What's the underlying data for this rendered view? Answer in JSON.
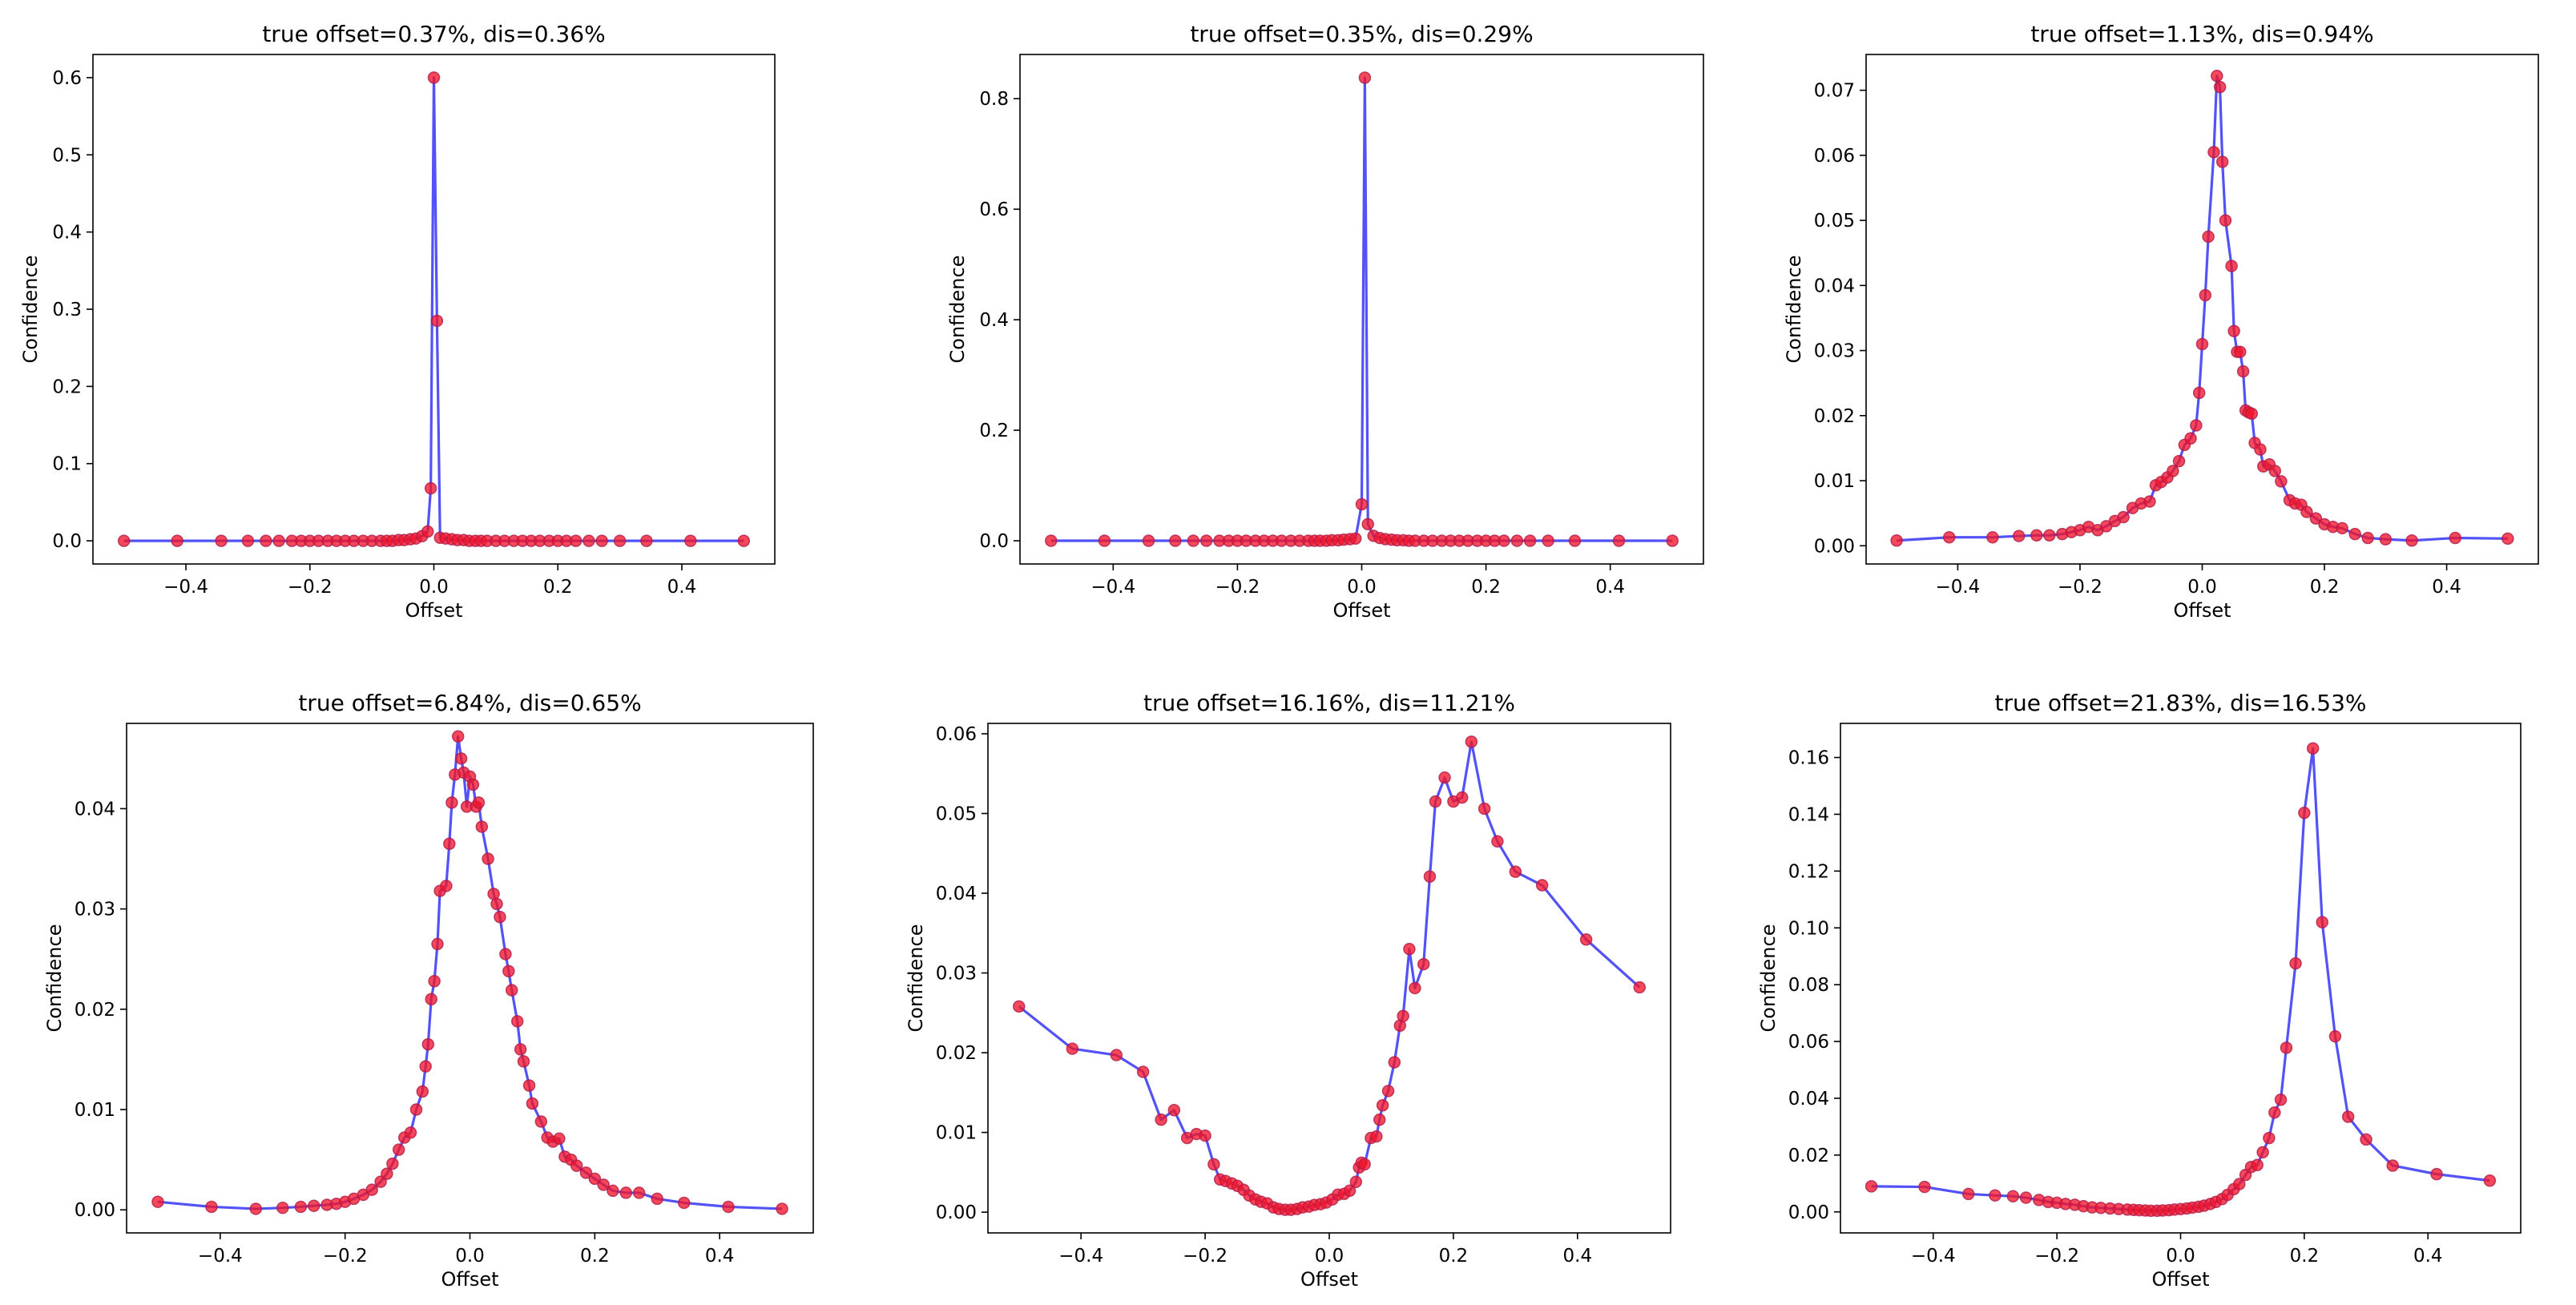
{
  "figure": {
    "background": "#ffffff",
    "line_color": "#3f3ff5",
    "marker_color": "#f2162c",
    "marker_edge": "#b01a4a"
  },
  "chart_data": [
    {
      "type": "line",
      "title": "true offset=0.37%, dis=0.36%",
      "xlabel": "Offset",
      "ylabel": "Confidence",
      "xlim": [
        -0.55,
        0.55
      ],
      "ylim": [
        -0.03,
        0.63
      ],
      "xticks": [
        -0.4,
        -0.2,
        0.0,
        0.2,
        0.4
      ],
      "xtick_labels": [
        "−0.4",
        "−0.2",
        "0.0",
        "0.2",
        "0.4"
      ],
      "yticks": [
        0.0,
        0.1,
        0.2,
        0.3,
        0.4,
        0.5,
        0.6
      ],
      "ytick_labels": [
        "0.0",
        "0.1",
        "0.2",
        "0.3",
        "0.4",
        "0.5",
        "0.6"
      ],
      "series": [
        {
          "name": "confidence",
          "x": [
            -0.5,
            -0.414,
            -0.343,
            -0.3,
            -0.271,
            -0.25,
            -0.229,
            -0.214,
            -0.2,
            -0.186,
            -0.171,
            -0.157,
            -0.143,
            -0.129,
            -0.114,
            -0.1,
            -0.086,
            -0.076,
            -0.067,
            -0.057,
            -0.048,
            -0.038,
            -0.029,
            -0.019,
            -0.01,
            -0.005,
            0.0,
            0.005,
            0.01,
            0.019,
            0.029,
            0.038,
            0.048,
            0.057,
            0.067,
            0.076,
            0.086,
            0.1,
            0.114,
            0.129,
            0.143,
            0.157,
            0.171,
            0.186,
            0.2,
            0.214,
            0.229,
            0.25,
            0.271,
            0.3,
            0.343,
            0.414,
            0.5
          ],
          "y": [
            0.0,
            0.0,
            0.0,
            0.0,
            0.0,
            0.0,
            0.0,
            0.0,
            0.0,
            0.0,
            0.0,
            0.0,
            0.0,
            0.0,
            0.0,
            0.0,
            0.0,
            0.0,
            0.0,
            0.001,
            0.001,
            0.002,
            0.003,
            0.006,
            0.012,
            0.068,
            0.6,
            0.285,
            0.004,
            0.003,
            0.002,
            0.001,
            0.001,
            0.0,
            0.0,
            0.0,
            0.0,
            0.0,
            0.0,
            0.0,
            0.0,
            0.0,
            0.0,
            0.0,
            0.0,
            0.0,
            0.0,
            0.0,
            0.0,
            0.0,
            0.0,
            0.0,
            0.0
          ]
        }
      ]
    },
    {
      "type": "line",
      "title": "true offset=0.35%, dis=0.29%",
      "xlabel": "Offset",
      "ylabel": "Confidence",
      "xlim": [
        -0.55,
        0.55
      ],
      "ylim": [
        -0.042,
        0.88
      ],
      "xticks": [
        -0.4,
        -0.2,
        0.0,
        0.2,
        0.4
      ],
      "xtick_labels": [
        "−0.4",
        "−0.2",
        "0.0",
        "0.2",
        "0.4"
      ],
      "yticks": [
        0.0,
        0.2,
        0.4,
        0.6,
        0.8
      ],
      "ytick_labels": [
        "0.0",
        "0.2",
        "0.4",
        "0.6",
        "0.8"
      ],
      "series": [
        {
          "name": "confidence",
          "x": [
            -0.5,
            -0.414,
            -0.343,
            -0.3,
            -0.271,
            -0.25,
            -0.229,
            -0.214,
            -0.2,
            -0.186,
            -0.171,
            -0.157,
            -0.143,
            -0.129,
            -0.114,
            -0.1,
            -0.086,
            -0.076,
            -0.067,
            -0.057,
            -0.048,
            -0.038,
            -0.029,
            -0.019,
            -0.01,
            0.0,
            0.005,
            0.01,
            0.019,
            0.029,
            0.038,
            0.048,
            0.057,
            0.067,
            0.076,
            0.086,
            0.1,
            0.114,
            0.129,
            0.143,
            0.157,
            0.171,
            0.186,
            0.2,
            0.214,
            0.229,
            0.25,
            0.271,
            0.3,
            0.343,
            0.414,
            0.5
          ],
          "y": [
            0.0,
            0.0,
            0.0,
            0.0,
            0.0,
            0.0,
            0.0,
            0.0,
            0.0,
            0.0,
            0.0,
            0.0,
            0.0,
            0.0,
            0.0,
            0.0,
            0.0,
            0.0,
            0.0,
            0.0,
            0.001,
            0.001,
            0.002,
            0.003,
            0.004,
            0.066,
            0.838,
            0.03,
            0.009,
            0.005,
            0.003,
            0.002,
            0.001,
            0.001,
            0.0,
            0.0,
            0.0,
            0.0,
            0.0,
            0.0,
            0.0,
            0.0,
            0.0,
            0.0,
            0.0,
            0.0,
            0.0,
            0.0,
            0.0,
            0.0,
            0.0,
            0.0
          ]
        }
      ]
    },
    {
      "type": "line",
      "title": "true offset=1.13%, dis=0.94%",
      "xlabel": "Offset",
      "ylabel": "Confidence",
      "xlim": [
        -0.55,
        0.55
      ],
      "ylim": [
        -0.0028,
        0.0755
      ],
      "xticks": [
        -0.4,
        -0.2,
        0.0,
        0.2,
        0.4
      ],
      "xtick_labels": [
        "−0.4",
        "−0.2",
        "0.0",
        "0.2",
        "0.4"
      ],
      "yticks": [
        0.0,
        0.01,
        0.02,
        0.03,
        0.04,
        0.05,
        0.06,
        0.07
      ],
      "ytick_labels": [
        "0.00",
        "0.01",
        "0.02",
        "0.03",
        "0.04",
        "0.05",
        "0.06",
        "0.07"
      ],
      "series": [
        {
          "name": "confidence",
          "x": [
            -0.5,
            -0.414,
            -0.343,
            -0.3,
            -0.271,
            -0.25,
            -0.229,
            -0.214,
            -0.2,
            -0.186,
            -0.171,
            -0.157,
            -0.143,
            -0.129,
            -0.114,
            -0.1,
            -0.086,
            -0.076,
            -0.067,
            -0.057,
            -0.048,
            -0.038,
            -0.029,
            -0.019,
            -0.01,
            -0.005,
            0.0,
            0.005,
            0.01,
            0.019,
            0.024,
            0.029,
            0.033,
            0.038,
            0.048,
            0.052,
            0.057,
            0.062,
            0.067,
            0.071,
            0.076,
            0.081,
            0.086,
            0.095,
            0.1,
            0.11,
            0.119,
            0.129,
            0.143,
            0.152,
            0.162,
            0.171,
            0.186,
            0.2,
            0.214,
            0.229,
            0.25,
            0.271,
            0.3,
            0.343,
            0.414,
            0.5
          ],
          "y": [
            0.0008,
            0.0013,
            0.0013,
            0.0015,
            0.0016,
            0.0016,
            0.0018,
            0.0021,
            0.0024,
            0.0029,
            0.0024,
            0.003,
            0.0038,
            0.0044,
            0.0058,
            0.0065,
            0.0068,
            0.0093,
            0.0098,
            0.0105,
            0.0115,
            0.013,
            0.0155,
            0.0165,
            0.0185,
            0.0235,
            0.031,
            0.0385,
            0.0475,
            0.0605,
            0.0722,
            0.0705,
            0.059,
            0.05,
            0.043,
            0.033,
            0.0298,
            0.0298,
            0.0268,
            0.0208,
            0.0205,
            0.0203,
            0.0158,
            0.0148,
            0.0122,
            0.0125,
            0.0115,
            0.0099,
            0.007,
            0.0065,
            0.0063,
            0.0052,
            0.0042,
            0.0033,
            0.0029,
            0.0027,
            0.0018,
            0.0012,
            0.001,
            0.0008,
            0.0012,
            0.0011
          ]
        }
      ]
    },
    {
      "type": "line",
      "title": "true offset=6.84%, dis=0.65%",
      "xlabel": "Offset",
      "ylabel": "Confidence",
      "xlim": [
        -0.55,
        0.55
      ],
      "ylim": [
        -0.0023,
        0.0485
      ],
      "xticks": [
        -0.4,
        -0.2,
        0.0,
        0.2,
        0.4
      ],
      "xtick_labels": [
        "−0.4",
        "−0.2",
        "0.0",
        "0.2",
        "0.4"
      ],
      "yticks": [
        0.0,
        0.01,
        0.02,
        0.03,
        0.04
      ],
      "ytick_labels": [
        "0.00",
        "0.01",
        "0.02",
        "0.03",
        "0.04"
      ],
      "series": [
        {
          "name": "confidence",
          "x": [
            -0.5,
            -0.414,
            -0.343,
            -0.3,
            -0.271,
            -0.25,
            -0.229,
            -0.214,
            -0.2,
            -0.186,
            -0.171,
            -0.157,
            -0.143,
            -0.133,
            -0.124,
            -0.114,
            -0.105,
            -0.095,
            -0.086,
            -0.076,
            -0.071,
            -0.067,
            -0.062,
            -0.057,
            -0.052,
            -0.048,
            -0.038,
            -0.033,
            -0.029,
            -0.024,
            -0.019,
            -0.014,
            -0.01,
            -0.005,
            0.0,
            0.005,
            0.01,
            0.014,
            0.019,
            0.029,
            0.038,
            0.043,
            0.048,
            0.057,
            0.062,
            0.067,
            0.076,
            0.081,
            0.086,
            0.095,
            0.1,
            0.114,
            0.124,
            0.133,
            0.143,
            0.152,
            0.162,
            0.171,
            0.186,
            0.2,
            0.214,
            0.229,
            0.25,
            0.271,
            0.3,
            0.343,
            0.414,
            0.5
          ],
          "y": [
            0.0008,
            0.0003,
            0.0001,
            0.0002,
            0.0003,
            0.0004,
            0.0005,
            0.0006,
            0.0008,
            0.0011,
            0.0015,
            0.002,
            0.0028,
            0.0036,
            0.0046,
            0.006,
            0.0072,
            0.0077,
            0.01,
            0.0118,
            0.0143,
            0.0165,
            0.021,
            0.0228,
            0.0265,
            0.0318,
            0.0323,
            0.0365,
            0.0406,
            0.0434,
            0.0472,
            0.045,
            0.0436,
            0.0402,
            0.0432,
            0.0424,
            0.0402,
            0.0406,
            0.0382,
            0.035,
            0.0315,
            0.0305,
            0.0292,
            0.0255,
            0.0238,
            0.0219,
            0.0188,
            0.016,
            0.0148,
            0.0124,
            0.0106,
            0.0088,
            0.0072,
            0.0068,
            0.0071,
            0.0053,
            0.005,
            0.0044,
            0.0037,
            0.0031,
            0.0025,
            0.0019,
            0.0017,
            0.0017,
            0.0011,
            0.0007,
            0.0003,
            0.0001
          ]
        }
      ]
    },
    {
      "type": "line",
      "title": "true offset=16.16%, dis=11.21%",
      "xlabel": "Offset",
      "ylabel": "Confidence",
      "xlim": [
        -0.55,
        0.55
      ],
      "ylim": [
        -0.0026,
        0.0613
      ],
      "xticks": [
        -0.4,
        -0.2,
        0.0,
        0.2,
        0.4
      ],
      "xtick_labels": [
        "−0.4",
        "−0.2",
        "0.0",
        "0.2",
        "0.4"
      ],
      "yticks": [
        0.0,
        0.01,
        0.02,
        0.03,
        0.04,
        0.05,
        0.06
      ],
      "ytick_labels": [
        "0.00",
        "0.01",
        "0.02",
        "0.03",
        "0.04",
        "0.05",
        "0.06"
      ],
      "series": [
        {
          "name": "confidence",
          "x": [
            -0.5,
            -0.414,
            -0.343,
            -0.3,
            -0.271,
            -0.25,
            -0.229,
            -0.214,
            -0.2,
            -0.186,
            -0.176,
            -0.167,
            -0.157,
            -0.148,
            -0.138,
            -0.129,
            -0.119,
            -0.11,
            -0.1,
            -0.09,
            -0.081,
            -0.071,
            -0.062,
            -0.052,
            -0.043,
            -0.033,
            -0.024,
            -0.014,
            -0.005,
            0.005,
            0.014,
            0.024,
            0.033,
            0.043,
            0.048,
            0.052,
            0.057,
            0.067,
            0.076,
            0.081,
            0.086,
            0.095,
            0.105,
            0.114,
            0.119,
            0.129,
            0.138,
            0.152,
            0.162,
            0.171,
            0.186,
            0.2,
            0.214,
            0.229,
            0.25,
            0.271,
            0.3,
            0.343,
            0.414,
            0.5
          ],
          "y": [
            0.0258,
            0.0205,
            0.0197,
            0.0176,
            0.0116,
            0.0128,
            0.0093,
            0.0098,
            0.0096,
            0.006,
            0.0041,
            0.0039,
            0.0036,
            0.0033,
            0.0028,
            0.0021,
            0.0016,
            0.0013,
            0.0011,
            0.0006,
            0.0004,
            0.0003,
            0.0003,
            0.0004,
            0.0006,
            0.0007,
            0.0009,
            0.001,
            0.0012,
            0.0016,
            0.0022,
            0.0023,
            0.0027,
            0.0038,
            0.0056,
            0.0062,
            0.006,
            0.0093,
            0.0095,
            0.0116,
            0.0134,
            0.0152,
            0.0188,
            0.0234,
            0.0246,
            0.033,
            0.0281,
            0.0311,
            0.0421,
            0.0515,
            0.0545,
            0.0515,
            0.052,
            0.059,
            0.0506,
            0.0465,
            0.0427,
            0.041,
            0.0342,
            0.0282
          ]
        }
      ]
    },
    {
      "type": "line",
      "title": "true offset=21.83%, dis=16.53%",
      "xlabel": "Offset",
      "ylabel": "Confidence",
      "xlim": [
        -0.55,
        0.55
      ],
      "ylim": [
        -0.0074,
        0.172
      ],
      "xticks": [
        -0.4,
        -0.2,
        0.0,
        0.2,
        0.4
      ],
      "xtick_labels": [
        "−0.4",
        "−0.2",
        "0.0",
        "0.2",
        "0.4"
      ],
      "yticks": [
        0.0,
        0.02,
        0.04,
        0.06,
        0.08,
        0.1,
        0.12,
        0.14,
        0.16
      ],
      "ytick_labels": [
        "0.00",
        "0.02",
        "0.04",
        "0.06",
        "0.08",
        "0.10",
        "0.12",
        "0.14",
        "0.16"
      ],
      "series": [
        {
          "name": "confidence",
          "x": [
            -0.5,
            -0.414,
            -0.343,
            -0.3,
            -0.271,
            -0.25,
            -0.229,
            -0.214,
            -0.2,
            -0.186,
            -0.171,
            -0.157,
            -0.143,
            -0.129,
            -0.114,
            -0.1,
            -0.086,
            -0.076,
            -0.067,
            -0.057,
            -0.048,
            -0.038,
            -0.029,
            -0.019,
            -0.01,
            0.0,
            0.01,
            0.019,
            0.029,
            0.038,
            0.048,
            0.057,
            0.067,
            0.076,
            0.086,
            0.095,
            0.105,
            0.114,
            0.124,
            0.133,
            0.143,
            0.152,
            0.162,
            0.171,
            0.186,
            0.2,
            0.214,
            0.229,
            0.25,
            0.271,
            0.3,
            0.343,
            0.414,
            0.5
          ],
          "y": [
            0.009,
            0.0088,
            0.0063,
            0.0058,
            0.0055,
            0.005,
            0.0042,
            0.0035,
            0.0032,
            0.0028,
            0.0025,
            0.002,
            0.0016,
            0.0014,
            0.0012,
            0.001,
            0.0008,
            0.0007,
            0.0006,
            0.0005,
            0.0004,
            0.0004,
            0.0005,
            0.0006,
            0.0008,
            0.001,
            0.0012,
            0.0015,
            0.0018,
            0.0022,
            0.0028,
            0.0035,
            0.0045,
            0.006,
            0.008,
            0.0098,
            0.013,
            0.0158,
            0.0165,
            0.021,
            0.026,
            0.035,
            0.0395,
            0.0578,
            0.0875,
            0.1405,
            0.1632,
            0.102,
            0.0618,
            0.0335,
            0.0255,
            0.0163,
            0.0133,
            0.011
          ]
        }
      ]
    }
  ]
}
